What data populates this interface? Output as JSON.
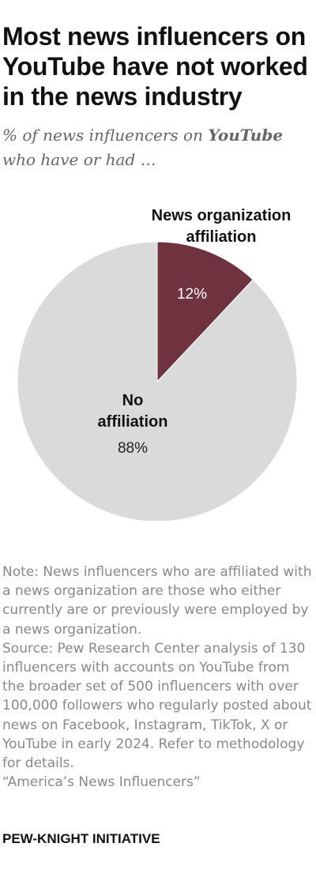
{
  "title": "Most news influencers on YouTube have not worked in the news industry",
  "subtitle": {
    "pre": "% of news influencers on ",
    "emphasis": "YouTube",
    "post": " who have or had …"
  },
  "chart_data": {
    "type": "pie",
    "slices": [
      {
        "label_lines": [
          "News organization",
          "affiliation"
        ],
        "value": 12,
        "value_label": "12%",
        "color": "#6e333e"
      },
      {
        "label_lines": [
          "No",
          "affiliation"
        ],
        "value": 88,
        "value_label": "88%",
        "color": "#dadada"
      }
    ],
    "legend": "none"
  },
  "note": "Note: News influencers who are affiliated with a news organization are those who either currently are or previously were employed by a news organization.",
  "source": "Source: Pew Research Center analysis of 130 influencers with accounts on YouTube from the broader set of 500 influencers with over 100,000 followers who regularly posted about news on Facebook, Instagram, TikTok, X or YouTube in early 2024. Refer to methodology for details.",
  "report": "“America’s News Influencers”",
  "footer": "PEW-KNIGHT INITIATIVE"
}
